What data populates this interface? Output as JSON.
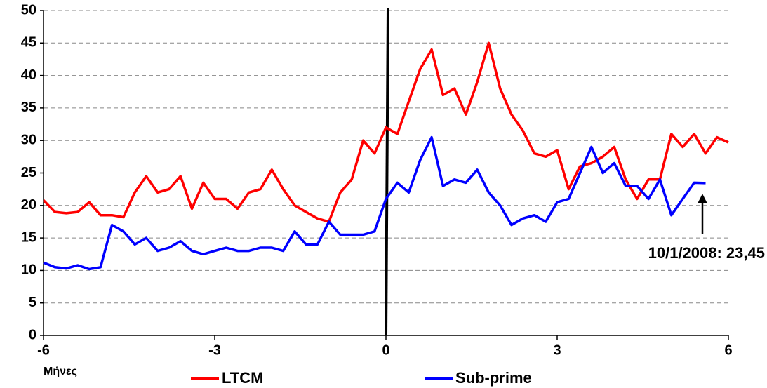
{
  "chart_data": {
    "type": "line",
    "x_label": "Μήνες",
    "annotation": "10/1/2008: 23,45",
    "x": [
      -6,
      -5.8,
      -5.6,
      -5.4,
      -5.2,
      -5,
      -4.8,
      -4.6,
      -4.4,
      -4.2,
      -4,
      -3.8,
      -3.6,
      -3.4,
      -3.2,
      -3,
      -2.8,
      -2.6,
      -2.4,
      -2.2,
      -2,
      -1.8,
      -1.6,
      -1.4,
      -1.2,
      -1,
      -0.8,
      -0.6,
      -0.4,
      -0.2,
      0,
      0.2,
      0.4,
      0.6,
      0.8,
      1,
      1.2,
      1.4,
      1.6,
      1.8,
      2,
      2.2,
      2.4,
      2.6,
      2.8,
      3,
      3.2,
      3.4,
      3.6,
      3.8,
      4,
      4.2,
      4.4,
      4.6,
      4.8,
      5,
      5.2,
      5.4,
      5.6,
      5.8,
      6
    ],
    "series": [
      {
        "name": "LTCM",
        "color": "#ff0000",
        "values": [
          20.8,
          19,
          18.8,
          19,
          20.5,
          18.5,
          18.5,
          18.2,
          22,
          24.5,
          22,
          22.5,
          24.5,
          19.5,
          23.5,
          21,
          21,
          19.5,
          22,
          22.5,
          25.5,
          22.5,
          20,
          19,
          18,
          17.5,
          22,
          24,
          30,
          28,
          32,
          31,
          36,
          41,
          44,
          37,
          38,
          34,
          39,
          45,
          38,
          34,
          31.5,
          28,
          27.5,
          28.5,
          22.5,
          26,
          26.5,
          27.5,
          29,
          24,
          21,
          24,
          24,
          31,
          29,
          31,
          28,
          30.5,
          29.7
        ]
      },
      {
        "name": "Sub-prime",
        "color": "#0000ff",
        "values": [
          11.2,
          10.5,
          10.3,
          10.8,
          10.2,
          10.5,
          17,
          16,
          14,
          15,
          13,
          13.5,
          14.5,
          13,
          12.5,
          13,
          13.5,
          13,
          13,
          13.5,
          13.5,
          13,
          16,
          14,
          14,
          17.5,
          15.5,
          15.5,
          15.5,
          16,
          21,
          23.5,
          22,
          27,
          30.5,
          23,
          24,
          23.5,
          25.5,
          22,
          20,
          17,
          18,
          18.5,
          17.5,
          20.5,
          21,
          25,
          29,
          25,
          26.5,
          23,
          23,
          21,
          24,
          18.5,
          21,
          23.5,
          23.45,
          null,
          null
        ]
      }
    ],
    "xlim": [
      -6,
      6
    ],
    "xticks": [
      -6,
      -3,
      0,
      3,
      6
    ],
    "ylim": [
      0,
      50
    ],
    "yticks": [
      0,
      5,
      10,
      15,
      20,
      25,
      30,
      35,
      40,
      45,
      50
    ],
    "grid": true
  }
}
